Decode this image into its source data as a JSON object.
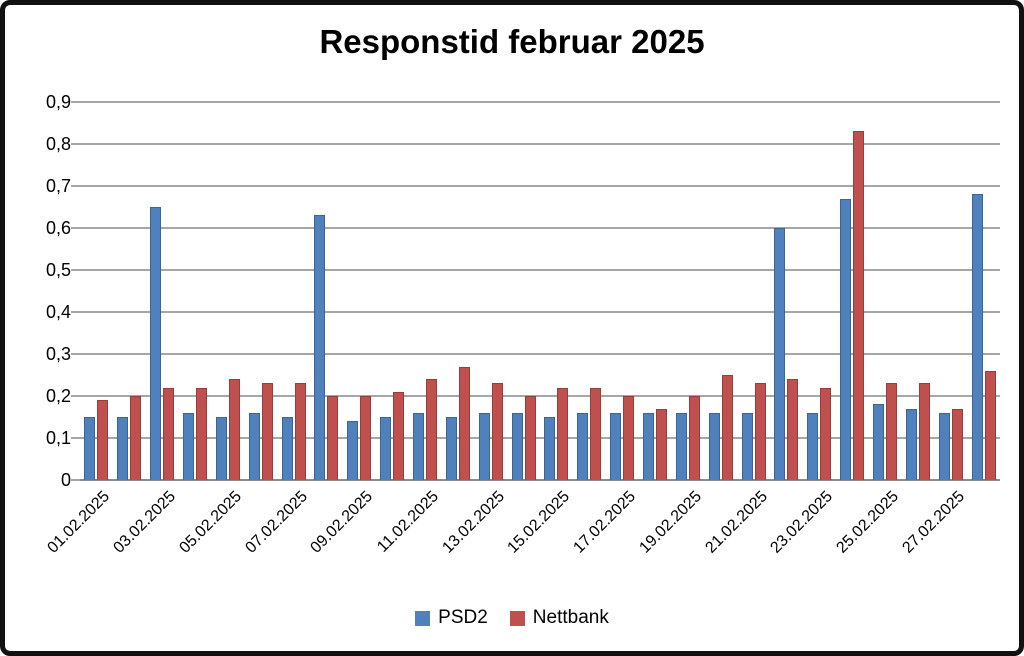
{
  "window": {
    "background_color": "#ffffff",
    "border_color": "#111111"
  },
  "chart_data": {
    "type": "bar",
    "title": "Responstid februar 2025",
    "categories": [
      "01.02.2025",
      "02.02.2025",
      "03.02.2025",
      "04.02.2025",
      "05.02.2025",
      "06.02.2025",
      "07.02.2025",
      "08.02.2025",
      "09.02.2025",
      "10.02.2025",
      "11.02.2025",
      "12.02.2025",
      "13.02.2025",
      "14.02.2025",
      "15.02.2025",
      "16.02.2025",
      "17.02.2025",
      "18.02.2025",
      "19.02.2025",
      "20.02.2025",
      "21.02.2025",
      "22.02.2025",
      "23.02.2025",
      "24.02.2025",
      "25.02.2025",
      "26.02.2025",
      "27.02.2025",
      "28.02.2025"
    ],
    "series": [
      {
        "name": "PSD2",
        "color": "#4F81BD",
        "values": [
          0.15,
          0.15,
          0.65,
          0.16,
          0.15,
          0.16,
          0.15,
          0.63,
          0.14,
          0.15,
          0.16,
          0.15,
          0.16,
          0.16,
          0.15,
          0.16,
          0.16,
          0.16,
          0.16,
          0.16,
          0.16,
          0.6,
          0.16,
          0.67,
          0.18,
          0.17,
          0.16,
          0.68
        ]
      },
      {
        "name": "Nettbank",
        "color": "#C0504D",
        "values": [
          0.19,
          0.2,
          0.22,
          0.22,
          0.24,
          0.23,
          0.23,
          0.2,
          0.2,
          0.21,
          0.24,
          0.27,
          0.23,
          0.2,
          0.22,
          0.22,
          0.2,
          0.17,
          0.2,
          0.25,
          0.23,
          0.24,
          0.22,
          0.83,
          0.23,
          0.23,
          0.17,
          0.26
        ]
      }
    ],
    "x_tick_labels": [
      "01.02.2025",
      "03.02.2025",
      "05.02.2025",
      "07.02.2025",
      "09.02.2025",
      "11.02.2025",
      "13.02.2025",
      "15.02.2025",
      "17.02.2025",
      "19.02.2025",
      "21.02.2025",
      "23.02.2025",
      "25.02.2025",
      "27.02.2025"
    ],
    "x_tick_every": 2,
    "y_tick_labels": [
      "0",
      "0,1",
      "0,2",
      "0,3",
      "0,4",
      "0,5",
      "0,6",
      "0,7",
      "0,8",
      "0,9"
    ],
    "ylim": [
      0,
      0.9
    ],
    "y_tick_step": 0.1,
    "decimal_separator": ",",
    "grid": true,
    "legend_position": "bottom",
    "xlabel": "",
    "ylabel": ""
  }
}
